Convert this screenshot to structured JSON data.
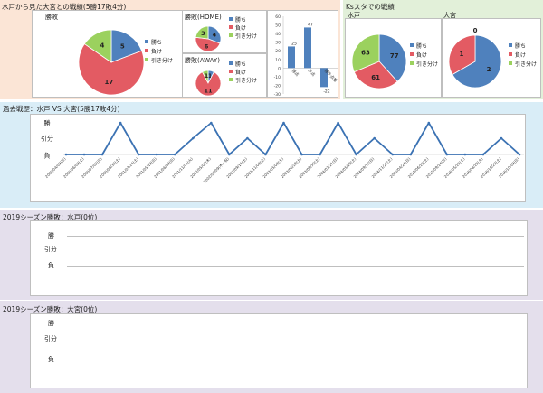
{
  "sections": {
    "s1_title": "水戸から見た大宮との戦績(5勝17敗4分)",
    "s2_title": "Ksスタでの戦績",
    "s3_title": "過去戦歴：水戸 VS 大宮(5勝17敗4分)",
    "s4_title": "2019シーズン勝敗：水戸(0位)",
    "s5_title": "2019シーズン勝敗：大宮(0位)"
  },
  "colors": {
    "win": "#4f81bd",
    "lose": "#e35b63",
    "draw": "#9bd15e",
    "line": "#3b72b3"
  },
  "legend": {
    "win": "勝ち",
    "lose": "負け",
    "draw": "引き分け"
  },
  "chart_data": [
    {
      "id": "total",
      "type": "pie",
      "title": "勝敗",
      "labels": [
        "勝ち",
        "負け",
        "引き分け"
      ],
      "values": [
        5,
        17,
        4
      ],
      "colors": [
        "#4f81bd",
        "#e35b63",
        "#9bd15e"
      ]
    },
    {
      "id": "home",
      "type": "pie",
      "title": "勝敗(HOME)",
      "labels": [
        "勝ち",
        "負け",
        "引き分け"
      ],
      "values": [
        4,
        6,
        3
      ],
      "colors": [
        "#4f81bd",
        "#e35b63",
        "#9bd15e"
      ]
    },
    {
      "id": "away",
      "type": "pie",
      "title": "勝敗(AWAY)",
      "labels": [
        "勝ち",
        "負け",
        "引き分け"
      ],
      "values": [
        1,
        11,
        1
      ],
      "colors": [
        "#4f81bd",
        "#e35b63",
        "#9bd15e"
      ]
    },
    {
      "id": "goals",
      "type": "bar",
      "categories": [
        "得点",
        "失点",
        "得失点差"
      ],
      "values": [
        25,
        47,
        -22
      ],
      "yticks": [
        60,
        50,
        40,
        30,
        20,
        10,
        0,
        -10,
        -20,
        -30
      ],
      "ylim": [
        -30,
        60
      ]
    },
    {
      "id": "ks_mito",
      "type": "pie",
      "title": "水戸",
      "labels": [
        "勝ち",
        "負け",
        "引き分け"
      ],
      "values": [
        77,
        61,
        63
      ],
      "colors": [
        "#4f81bd",
        "#e35b63",
        "#9bd15e"
      ]
    },
    {
      "id": "ks_omiya",
      "type": "pie",
      "title": "大宮",
      "labels": [
        "勝ち",
        "負け",
        "引き分け"
      ],
      "values": [
        2,
        1,
        0
      ],
      "colors": [
        "#4f81bd",
        "#e35b63",
        "#9bd15e"
      ]
    },
    {
      "id": "history",
      "type": "line",
      "ylabels": [
        "勝",
        "引分",
        "負"
      ],
      "x": [
        "2000/04/09(日)",
        "2000/06/03(土)",
        "2000/07/02(日)",
        "2000/09/30(土)",
        "2001/03/24(土)",
        "2001/05/13(日)",
        "2001/06/03(日)",
        "2001/11/06(火)",
        "2002/05/07(木)",
        "2002/06/09(木・祝)",
        "2002/09/14(土)",
        "2002/11/03(土)",
        "2003/05/03(土)",
        "2003/06/28(土)",
        "2003/08/30(土)",
        "2004/03/21(日)",
        "2004/05/29(土)",
        "2004/09/12(日)",
        "2004/11/27(土)",
        "2005/04/24(日)",
        "2015/06/16(土)",
        "2015/09/14(日)",
        "2016/05/16(土)",
        "2016/08/15(土)",
        "2016/10/20(土)",
        "2016/10/09(日)"
      ],
      "values": [
        "負",
        "負",
        "負",
        "勝",
        "負",
        "負",
        "負",
        "引分",
        "勝",
        "負",
        "引分",
        "負",
        "勝",
        "負",
        "負",
        "勝",
        "負",
        "引分",
        "負",
        "負",
        "勝",
        "負",
        "負",
        "負",
        "引分",
        "負"
      ]
    },
    {
      "id": "s2019_mito",
      "type": "line",
      "ylabels": [
        "勝",
        "引分",
        "負"
      ],
      "x": [],
      "values": []
    },
    {
      "id": "s2019_omiya",
      "type": "line",
      "ylabels": [
        "勝",
        "引分",
        "負"
      ],
      "x": [],
      "values": []
    }
  ]
}
